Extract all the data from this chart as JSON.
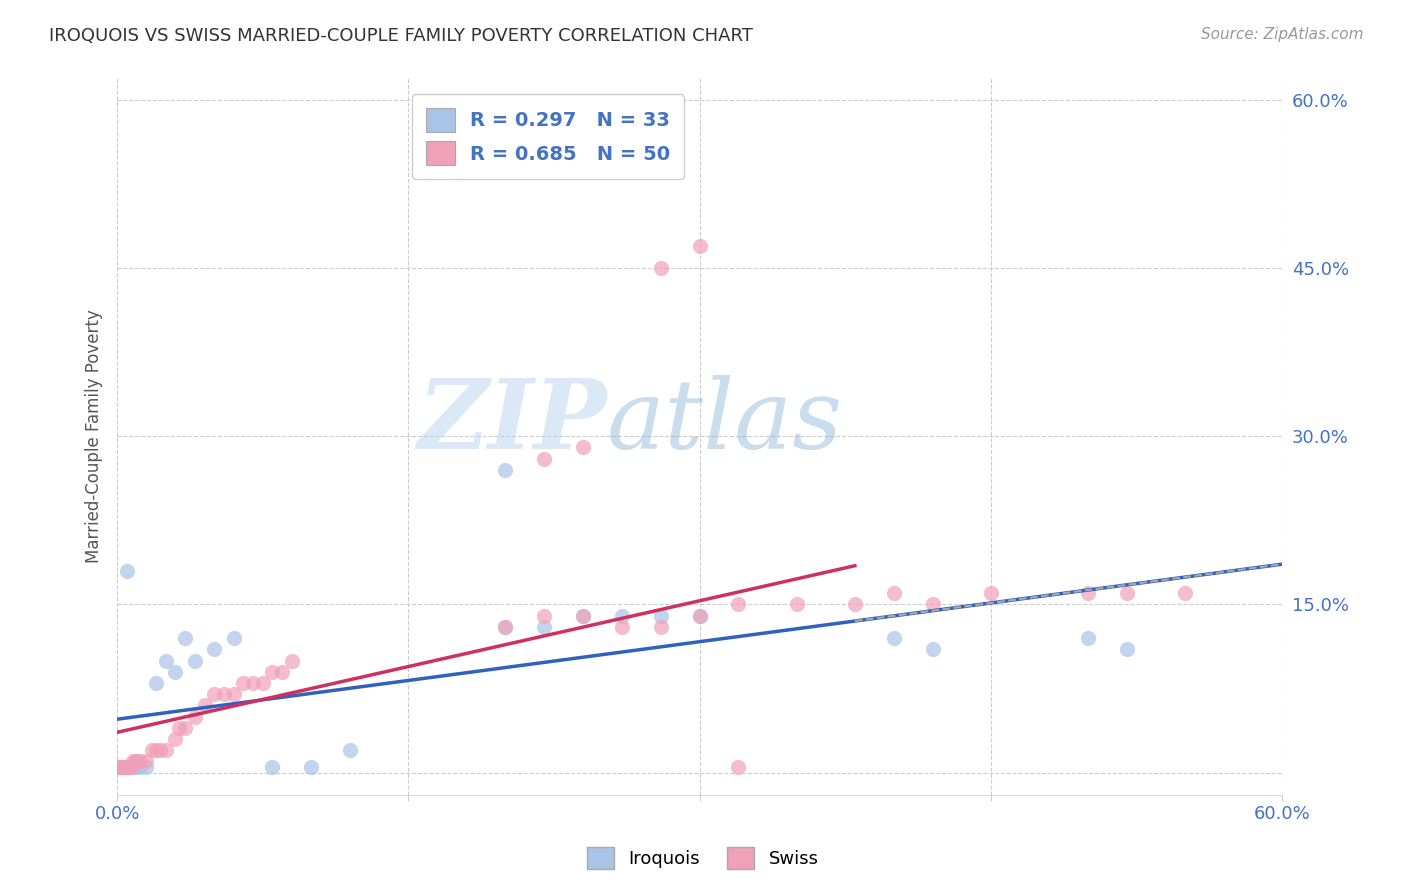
{
  "title": "IROQUOIS VS SWISS MARRIED-COUPLE FAMILY POVERTY CORRELATION CHART",
  "source": "Source: ZipAtlas.com",
  "ylabel": "Married-Couple Family Poverty",
  "xlim": [
    0.0,
    0.6
  ],
  "ylim": [
    -0.02,
    0.62
  ],
  "xticks": [
    0.0,
    0.15,
    0.3,
    0.45,
    0.6
  ],
  "xtick_labels": [
    "0.0%",
    "",
    "",
    "",
    "60.0%"
  ],
  "yticks": [
    0.0,
    0.15,
    0.3,
    0.45,
    0.6
  ],
  "ytick_labels": [
    "",
    "15.0%",
    "30.0%",
    "45.0%",
    "60.0%"
  ],
  "iroquois_color": "#aac4e8",
  "swiss_color": "#f0a0b8",
  "trend_line_color_iroquois": "#3060c0",
  "trend_line_color_swiss": "#d03060",
  "R_iroquois": 0.297,
  "N_iroquois": 33,
  "R_swiss": 0.685,
  "N_swiss": 50,
  "watermark_zip": "ZIP",
  "watermark_atlas": "atlas",
  "background_color": "#ffffff",
  "grid_color": "#cccccc",
  "iroquois_scatter": [
    [
      0.001,
      0.005
    ],
    [
      0.002,
      0.005
    ],
    [
      0.003,
      0.005
    ],
    [
      0.004,
      0.005
    ],
    [
      0.005,
      0.005
    ],
    [
      0.006,
      0.005
    ],
    [
      0.007,
      0.005
    ],
    [
      0.008,
      0.005
    ],
    [
      0.01,
      0.005
    ],
    [
      0.012,
      0.005
    ],
    [
      0.015,
      0.005
    ],
    [
      0.02,
      0.08
    ],
    [
      0.025,
      0.1
    ],
    [
      0.03,
      0.09
    ],
    [
      0.035,
      0.12
    ],
    [
      0.04,
      0.1
    ],
    [
      0.05,
      0.11
    ],
    [
      0.06,
      0.12
    ],
    [
      0.005,
      0.18
    ],
    [
      0.2,
      0.13
    ],
    [
      0.22,
      0.13
    ],
    [
      0.24,
      0.14
    ],
    [
      0.26,
      0.14
    ],
    [
      0.28,
      0.14
    ],
    [
      0.3,
      0.14
    ],
    [
      0.4,
      0.12
    ],
    [
      0.42,
      0.11
    ],
    [
      0.5,
      0.12
    ],
    [
      0.52,
      0.11
    ],
    [
      0.2,
      0.27
    ],
    [
      0.08,
      0.005
    ],
    [
      0.1,
      0.005
    ],
    [
      0.12,
      0.02
    ]
  ],
  "swiss_scatter": [
    [
      0.001,
      0.005
    ],
    [
      0.002,
      0.005
    ],
    [
      0.003,
      0.005
    ],
    [
      0.004,
      0.005
    ],
    [
      0.005,
      0.005
    ],
    [
      0.006,
      0.005
    ],
    [
      0.007,
      0.005
    ],
    [
      0.008,
      0.01
    ],
    [
      0.009,
      0.01
    ],
    [
      0.01,
      0.01
    ],
    [
      0.012,
      0.01
    ],
    [
      0.015,
      0.01
    ],
    [
      0.018,
      0.02
    ],
    [
      0.02,
      0.02
    ],
    [
      0.022,
      0.02
    ],
    [
      0.025,
      0.02
    ],
    [
      0.03,
      0.03
    ],
    [
      0.032,
      0.04
    ],
    [
      0.035,
      0.04
    ],
    [
      0.04,
      0.05
    ],
    [
      0.045,
      0.06
    ],
    [
      0.05,
      0.07
    ],
    [
      0.055,
      0.07
    ],
    [
      0.06,
      0.07
    ],
    [
      0.065,
      0.08
    ],
    [
      0.07,
      0.08
    ],
    [
      0.075,
      0.08
    ],
    [
      0.08,
      0.09
    ],
    [
      0.085,
      0.09
    ],
    [
      0.09,
      0.1
    ],
    [
      0.2,
      0.13
    ],
    [
      0.22,
      0.14
    ],
    [
      0.24,
      0.14
    ],
    [
      0.26,
      0.13
    ],
    [
      0.28,
      0.13
    ],
    [
      0.3,
      0.14
    ],
    [
      0.32,
      0.15
    ],
    [
      0.35,
      0.15
    ],
    [
      0.38,
      0.15
    ],
    [
      0.4,
      0.16
    ],
    [
      0.42,
      0.15
    ],
    [
      0.45,
      0.16
    ],
    [
      0.5,
      0.16
    ],
    [
      0.52,
      0.16
    ],
    [
      0.55,
      0.16
    ],
    [
      0.22,
      0.28
    ],
    [
      0.24,
      0.29
    ],
    [
      0.28,
      0.45
    ],
    [
      0.3,
      0.47
    ],
    [
      0.32,
      0.005
    ]
  ]
}
